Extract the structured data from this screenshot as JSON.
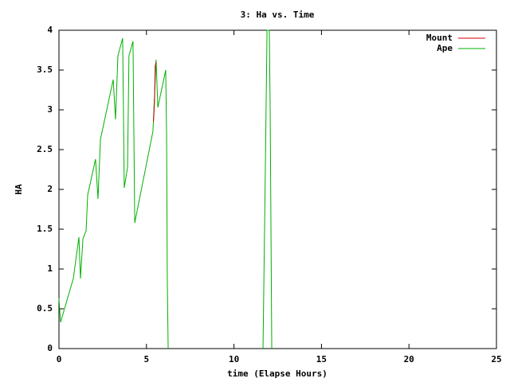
{
  "chart_data": {
    "type": "line",
    "title": "3: Ha vs. Time",
    "x_label": "time (Elapse Hours)",
    "y_label": "HA",
    "xlim": [
      0,
      25
    ],
    "xticks": [
      0,
      5,
      10,
      15,
      20,
      25
    ],
    "ylim": [
      0,
      4
    ],
    "yticks": [
      0,
      0.5,
      1,
      1.5,
      2,
      2.5,
      3,
      3.5,
      4
    ],
    "grid": false,
    "legend": "top-right",
    "series": [
      {
        "name": "Mount",
        "color": "#cc0000",
        "x": [
          5.4,
          5.46,
          5.5,
          5.55
        ],
        "values": [
          2.85,
          3.1,
          3.55,
          3.6
        ]
      },
      {
        "name": "Ape",
        "color": "#00b000",
        "x": [
          0,
          0.09,
          0.82,
          1.14,
          1.23,
          1.37,
          1.55,
          1.64,
          2.09,
          2.23,
          2.37,
          3.1,
          3.23,
          3.37,
          3.64,
          3.73,
          3.92,
          4.0,
          4.23,
          4.33,
          5.37,
          5.46,
          5.55,
          5.65,
          6.1,
          6.15,
          6.19,
          6.24,
          null,
          11.66,
          11.8,
          11.89,
          12.02,
          12.07,
          12.16
        ],
        "values": [
          0.63,
          0.33,
          0.88,
          1.4,
          0.88,
          1.38,
          1.48,
          1.93,
          2.38,
          1.88,
          2.63,
          3.38,
          2.88,
          3.68,
          3.9,
          2.02,
          2.28,
          3.68,
          3.86,
          1.58,
          2.73,
          3.18,
          3.63,
          3.03,
          3.5,
          2.68,
          0.88,
          0,
          null,
          0,
          2.38,
          4,
          4,
          2.98,
          0
        ]
      }
    ]
  }
}
